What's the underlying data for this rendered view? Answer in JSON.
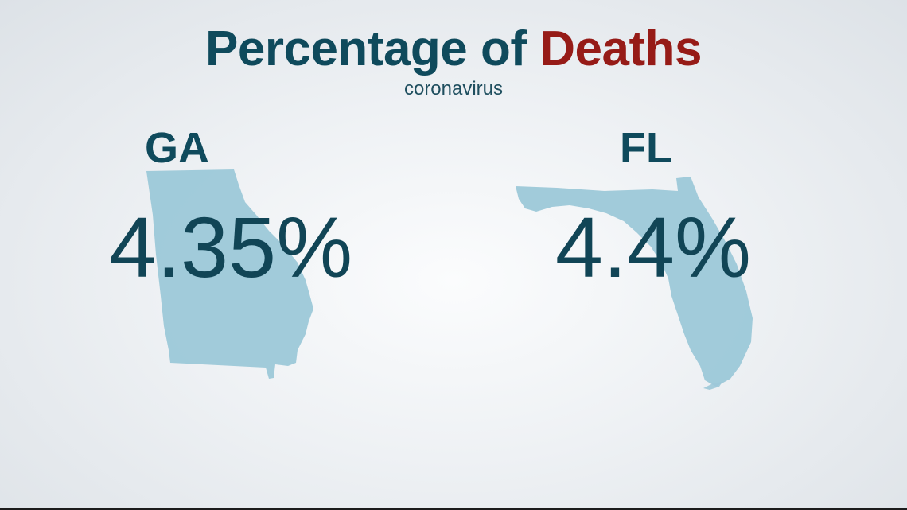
{
  "title": {
    "part1": "Percentage of ",
    "part2": "Deaths"
  },
  "subtitle": "coronavirus",
  "states": [
    {
      "code": "GA",
      "percentage": "4.35%",
      "map_icon": "georgia-map-icon"
    },
    {
      "code": "FL",
      "percentage": "4.4%",
      "map_icon": "florida-map-icon"
    }
  ],
  "colors": {
    "title_dark": "#0f4a5c",
    "title_accent": "#961b17",
    "map_fill": "#9cc8d8"
  }
}
